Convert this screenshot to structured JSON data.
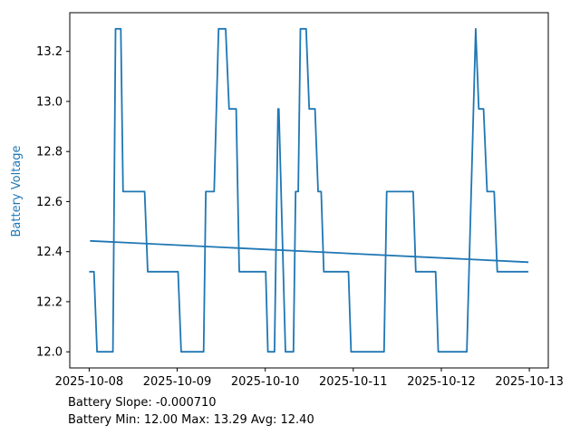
{
  "chart_data": {
    "type": "line",
    "title": "",
    "xlabel": "",
    "ylabel": "Battery Voltage",
    "x_tick_labels": [
      "2025-10-08",
      "2025-10-09",
      "2025-10-10",
      "2025-10-11",
      "2025-10-12",
      "2025-10-13"
    ],
    "x_tick_days": [
      0,
      1,
      2,
      3,
      4,
      5
    ],
    "y_ticks": [
      12.0,
      12.2,
      12.4,
      12.6,
      12.8,
      13.0,
      13.2
    ],
    "xlim": [
      -0.22,
      5.215
    ],
    "ylim": [
      11.9355,
      13.3545
    ],
    "grid": false,
    "legend": false,
    "colors": {
      "line": "#1f77b4",
      "trend": "#1f77b4",
      "ylabel": "#1f77b4",
      "axis": "#000000",
      "text": "#000000"
    },
    "series": [
      {
        "name": "battery-voltage",
        "points": [
          [
            0.0,
            12.32
          ],
          [
            0.055,
            12.32
          ],
          [
            0.09,
            12.0
          ],
          [
            0.27,
            12.0
          ],
          [
            0.3,
            13.29
          ],
          [
            0.36,
            13.29
          ],
          [
            0.385,
            12.64
          ],
          [
            0.63,
            12.64
          ],
          [
            0.665,
            12.32
          ],
          [
            1.01,
            12.32
          ],
          [
            1.045,
            12.0
          ],
          [
            1.3,
            12.0
          ],
          [
            1.325,
            12.64
          ],
          [
            1.42,
            12.64
          ],
          [
            1.47,
            13.29
          ],
          [
            1.55,
            13.29
          ],
          [
            1.59,
            12.97
          ],
          [
            1.67,
            12.97
          ],
          [
            1.705,
            12.32
          ],
          [
            2.005,
            12.32
          ],
          [
            2.03,
            12.0
          ],
          [
            2.105,
            12.0
          ],
          [
            2.145,
            12.97
          ],
          [
            2.155,
            12.97
          ],
          [
            2.23,
            12.0
          ],
          [
            2.32,
            12.0
          ],
          [
            2.345,
            12.64
          ],
          [
            2.375,
            12.64
          ],
          [
            2.4,
            13.29
          ],
          [
            2.465,
            13.29
          ],
          [
            2.5,
            12.97
          ],
          [
            2.565,
            12.97
          ],
          [
            2.6,
            12.64
          ],
          [
            2.635,
            12.64
          ],
          [
            2.665,
            12.32
          ],
          [
            2.945,
            12.32
          ],
          [
            2.975,
            12.0
          ],
          [
            3.35,
            12.0
          ],
          [
            3.38,
            12.64
          ],
          [
            3.68,
            12.64
          ],
          [
            3.71,
            12.32
          ],
          [
            3.935,
            12.32
          ],
          [
            3.965,
            12.0
          ],
          [
            4.29,
            12.0
          ],
          [
            4.39,
            13.29
          ],
          [
            4.425,
            12.97
          ],
          [
            4.48,
            12.97
          ],
          [
            4.52,
            12.64
          ],
          [
            4.6,
            12.64
          ],
          [
            4.635,
            12.32
          ],
          [
            4.99,
            12.32
          ]
        ]
      },
      {
        "name": "battery-trend",
        "points": [
          [
            0.01,
            12.443
          ],
          [
            4.99,
            12.358
          ]
        ]
      }
    ],
    "stats": {
      "slope": "-0.000710",
      "min": "12.00",
      "max": "13.29",
      "avg": "12.40"
    },
    "annotations": [
      "Battery Slope: -0.000710",
      "Battery Min: 12.00 Max: 13.29 Avg: 12.40"
    ]
  }
}
